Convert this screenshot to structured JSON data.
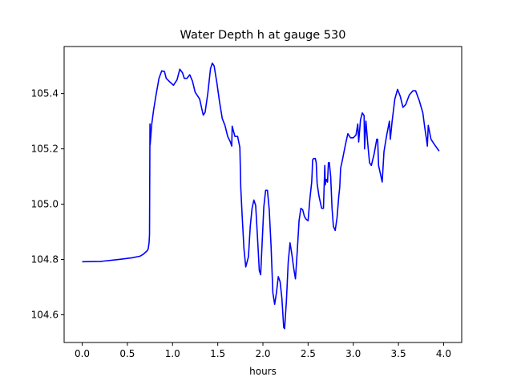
{
  "chart_data": {
    "type": "line",
    "title": "Water Depth h at gauge 530",
    "xlabel": "hours",
    "ylabel": "",
    "xlim": [
      -0.2,
      4.2
    ],
    "ylim": [
      104.5,
      105.57
    ],
    "grid": false,
    "legend": "none",
    "x_ticks": [
      0.0,
      0.5,
      1.0,
      1.5,
      2.0,
      2.5,
      3.0,
      3.5,
      4.0
    ],
    "x_tick_labels": [
      "0.0",
      "0.5",
      "1.0",
      "1.5",
      "2.0",
      "2.5",
      "3.0",
      "3.5",
      "4.0"
    ],
    "y_ticks": [
      104.6,
      104.8,
      105.0,
      105.2,
      105.4
    ],
    "y_tick_labels": [
      "104.6",
      "104.8",
      "105.0",
      "105.2",
      "105.4"
    ],
    "series": [
      {
        "color": "#0000ff",
        "points": [
          [
            0.0,
            104.792
          ],
          [
            0.2,
            104.793
          ],
          [
            0.4,
            104.8
          ],
          [
            0.55,
            104.806
          ],
          [
            0.64,
            104.812
          ],
          [
            0.68,
            104.82
          ],
          [
            0.72,
            104.832
          ],
          [
            0.73,
            104.838
          ],
          [
            0.74,
            104.86
          ],
          [
            0.745,
            104.89
          ],
          [
            0.75,
            105.29
          ],
          [
            0.752,
            105.215
          ],
          [
            0.77,
            105.29
          ],
          [
            0.79,
            105.34
          ],
          [
            0.82,
            105.4
          ],
          [
            0.85,
            105.455
          ],
          [
            0.88,
            105.482
          ],
          [
            0.91,
            105.48
          ],
          [
            0.93,
            105.455
          ],
          [
            0.97,
            105.442
          ],
          [
            1.01,
            105.43
          ],
          [
            1.05,
            105.45
          ],
          [
            1.08,
            105.488
          ],
          [
            1.11,
            105.475
          ],
          [
            1.13,
            105.455
          ],
          [
            1.16,
            105.455
          ],
          [
            1.19,
            105.468
          ],
          [
            1.22,
            105.445
          ],
          [
            1.25,
            105.405
          ],
          [
            1.28,
            105.39
          ],
          [
            1.3,
            105.38
          ],
          [
            1.32,
            105.35
          ],
          [
            1.34,
            105.322
          ],
          [
            1.36,
            105.332
          ],
          [
            1.39,
            105.4
          ],
          [
            1.42,
            105.49
          ],
          [
            1.44,
            105.51
          ],
          [
            1.46,
            105.5
          ],
          [
            1.49,
            105.44
          ],
          [
            1.52,
            105.37
          ],
          [
            1.55,
            105.31
          ],
          [
            1.58,
            105.285
          ],
          [
            1.61,
            105.245
          ],
          [
            1.64,
            105.225
          ],
          [
            1.655,
            105.21
          ],
          [
            1.66,
            105.282
          ],
          [
            1.69,
            105.245
          ],
          [
            1.72,
            105.245
          ],
          [
            1.745,
            105.205
          ],
          [
            1.755,
            105.06
          ],
          [
            1.77,
            104.96
          ],
          [
            1.79,
            104.84
          ],
          [
            1.81,
            104.773
          ],
          [
            1.84,
            104.81
          ],
          [
            1.86,
            104.92
          ],
          [
            1.88,
            104.985
          ],
          [
            1.9,
            105.015
          ],
          [
            1.92,
            104.995
          ],
          [
            1.94,
            104.88
          ],
          [
            1.96,
            104.76
          ],
          [
            1.975,
            104.745
          ],
          [
            1.99,
            104.85
          ],
          [
            2.01,
            104.99
          ],
          [
            2.03,
            105.05
          ],
          [
            2.05,
            105.05
          ],
          [
            2.07,
            104.98
          ],
          [
            2.09,
            104.85
          ],
          [
            2.11,
            104.68
          ],
          [
            2.13,
            104.638
          ],
          [
            2.15,
            104.68
          ],
          [
            2.17,
            104.738
          ],
          [
            2.19,
            104.72
          ],
          [
            2.21,
            104.66
          ],
          [
            2.23,
            104.555
          ],
          [
            2.24,
            104.55
          ],
          [
            2.26,
            104.65
          ],
          [
            2.28,
            104.79
          ],
          [
            2.3,
            104.86
          ],
          [
            2.32,
            104.82
          ],
          [
            2.34,
            104.77
          ],
          [
            2.36,
            104.73
          ],
          [
            2.38,
            104.83
          ],
          [
            2.4,
            104.94
          ],
          [
            2.42,
            104.985
          ],
          [
            2.44,
            104.98
          ],
          [
            2.46,
            104.955
          ],
          [
            2.48,
            104.945
          ],
          [
            2.5,
            104.94
          ],
          [
            2.52,
            105.02
          ],
          [
            2.54,
            105.08
          ],
          [
            2.545,
            105.115
          ],
          [
            2.55,
            105.16
          ],
          [
            2.56,
            105.165
          ],
          [
            2.58,
            105.165
          ],
          [
            2.59,
            105.15
          ],
          [
            2.6,
            105.075
          ],
          [
            2.62,
            105.03
          ],
          [
            2.65,
            104.985
          ],
          [
            2.67,
            104.985
          ],
          [
            2.685,
            105.14
          ],
          [
            2.69,
            105.07
          ],
          [
            2.7,
            105.09
          ],
          [
            2.715,
            105.08
          ],
          [
            2.725,
            105.15
          ],
          [
            2.735,
            105.15
          ],
          [
            2.75,
            105.1
          ],
          [
            2.765,
            104.985
          ],
          [
            2.78,
            104.92
          ],
          [
            2.8,
            104.905
          ],
          [
            2.82,
            104.95
          ],
          [
            2.84,
            105.03
          ],
          [
            2.85,
            105.06
          ],
          [
            2.86,
            105.13
          ],
          [
            2.88,
            105.16
          ],
          [
            2.91,
            105.21
          ],
          [
            2.94,
            105.255
          ],
          [
            2.97,
            105.24
          ],
          [
            3.0,
            105.24
          ],
          [
            3.03,
            105.25
          ],
          [
            3.05,
            105.29
          ],
          [
            3.06,
            105.225
          ],
          [
            3.08,
            105.305
          ],
          [
            3.1,
            105.33
          ],
          [
            3.12,
            105.32
          ],
          [
            3.125,
            105.2
          ],
          [
            3.14,
            105.3
          ],
          [
            3.16,
            105.22
          ],
          [
            3.18,
            105.15
          ],
          [
            3.2,
            105.14
          ],
          [
            3.23,
            105.18
          ],
          [
            3.26,
            105.235
          ],
          [
            3.27,
            105.235
          ],
          [
            3.28,
            105.14
          ],
          [
            3.3,
            105.11
          ],
          [
            3.32,
            105.08
          ],
          [
            3.34,
            105.19
          ],
          [
            3.37,
            105.25
          ],
          [
            3.4,
            105.3
          ],
          [
            3.41,
            105.235
          ],
          [
            3.43,
            105.3
          ],
          [
            3.46,
            105.38
          ],
          [
            3.49,
            105.415
          ],
          [
            3.52,
            105.39
          ],
          [
            3.55,
            105.35
          ],
          [
            3.58,
            105.36
          ],
          [
            3.62,
            105.395
          ],
          [
            3.66,
            105.41
          ],
          [
            3.69,
            105.41
          ],
          [
            3.73,
            105.375
          ],
          [
            3.77,
            105.33
          ],
          [
            3.79,
            105.28
          ],
          [
            3.81,
            105.235
          ],
          [
            3.82,
            105.21
          ],
          [
            3.83,
            105.285
          ],
          [
            3.86,
            105.235
          ],
          [
            3.9,
            105.215
          ],
          [
            3.95,
            105.192
          ]
        ]
      }
    ]
  }
}
